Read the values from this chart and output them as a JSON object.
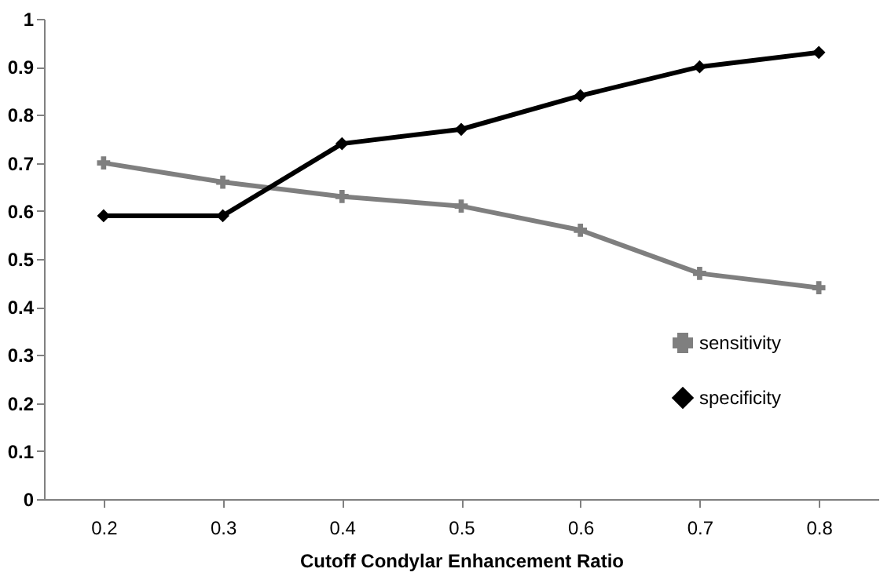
{
  "chart_data": {
    "type": "line",
    "xlabel": "Cutoff Condylar Enhancement Ratio",
    "categories": [
      "0.2",
      "0.3",
      "0.4",
      "0.5",
      "0.6",
      "0.7",
      "0.8"
    ],
    "series": [
      {
        "name": "sensitivity",
        "color": "#7f7f7f",
        "marker": "cross",
        "values": [
          0.7,
          0.66,
          0.63,
          0.61,
          0.56,
          0.47,
          0.44
        ]
      },
      {
        "name": "specificity",
        "color": "#000000",
        "marker": "diamond",
        "values": [
          0.59,
          0.59,
          0.74,
          0.77,
          0.84,
          0.9,
          0.93
        ]
      }
    ],
    "ylim": [
      0,
      1
    ],
    "yticks": [
      0,
      0.1,
      0.2,
      0.3,
      0.4,
      0.5,
      0.6,
      0.7,
      0.8,
      0.9,
      1
    ],
    "grid": false,
    "legend": "bottom right",
    "line_style": "solid"
  }
}
